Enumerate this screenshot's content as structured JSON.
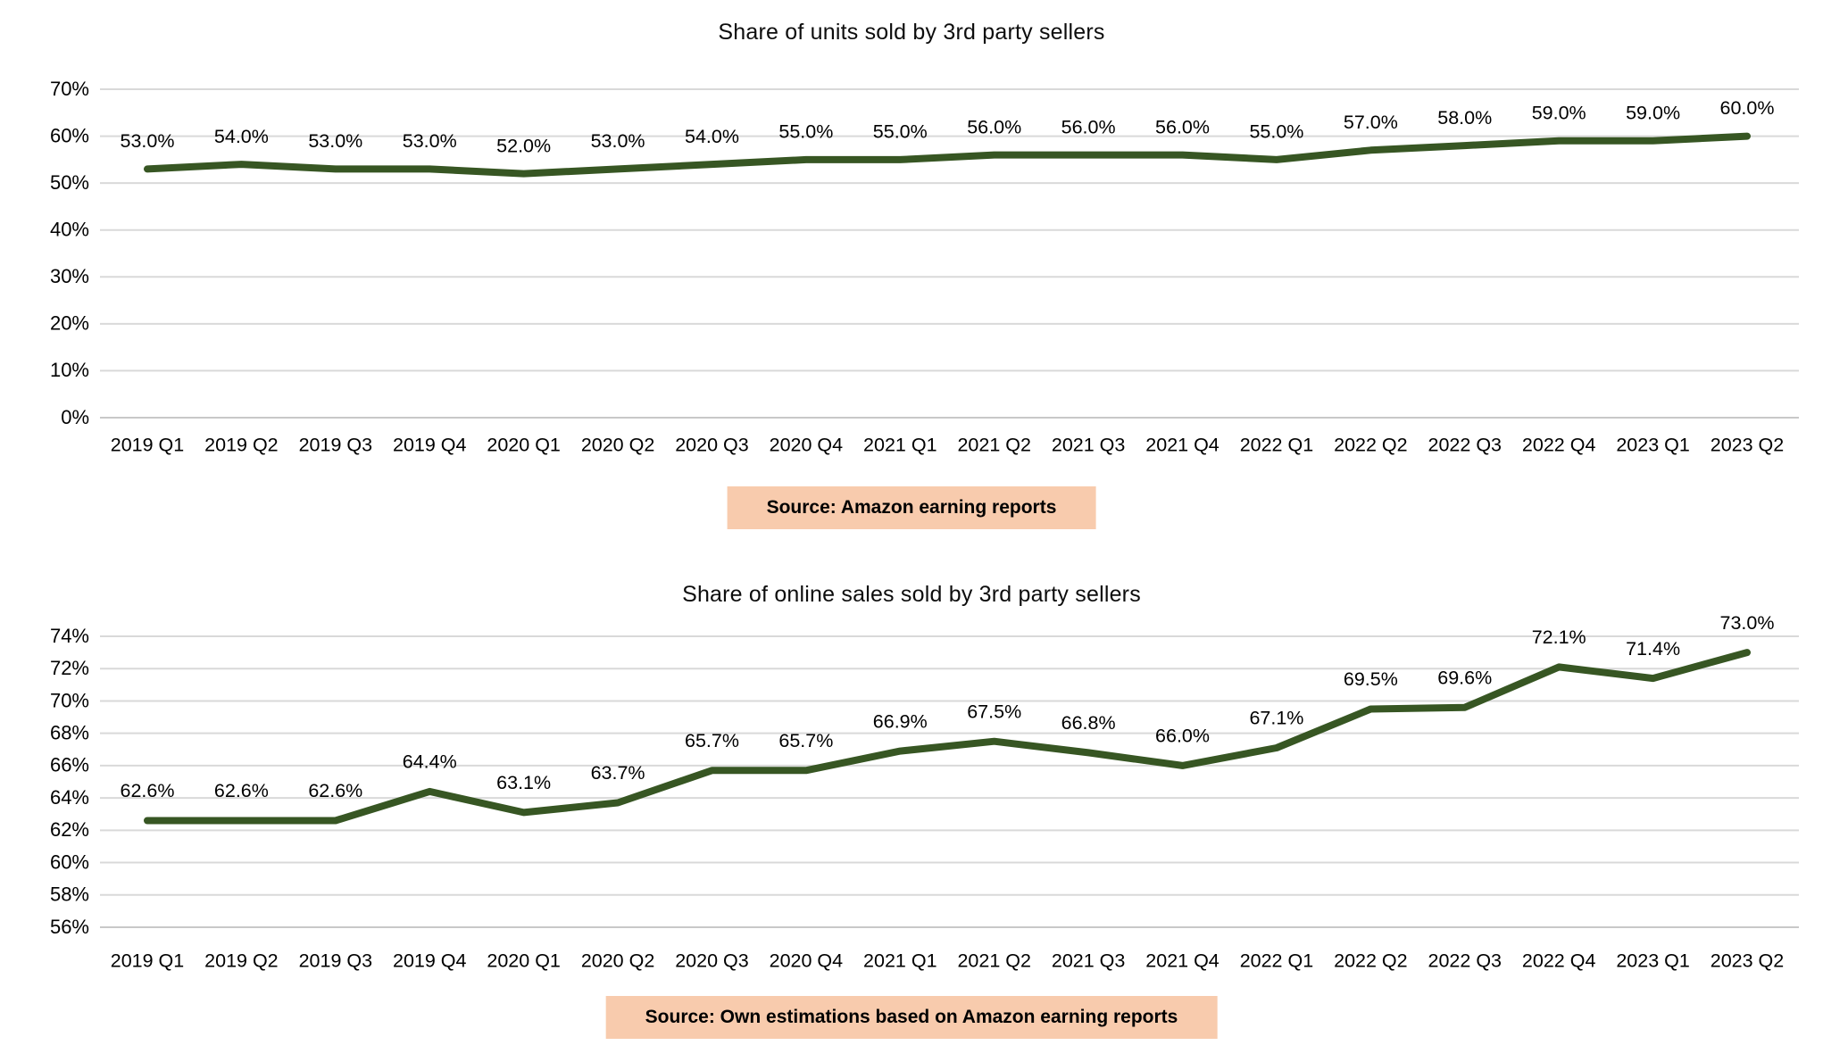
{
  "page": {
    "background_color": "#ffffff",
    "text_color": "#000000"
  },
  "chart_data": [
    {
      "type": "line",
      "title": "Share of units sold by 3rd party sellers",
      "source_label": "Source: Amazon earning reports",
      "categories": [
        "2019 Q1",
        "2019 Q2",
        "2019 Q3",
        "2019 Q4",
        "2020 Q1",
        "2020 Q2",
        "2020 Q3",
        "2020 Q4",
        "2021 Q1",
        "2021 Q2",
        "2021 Q3",
        "2021 Q4",
        "2022 Q1",
        "2022 Q2",
        "2022 Q3",
        "2022 Q4",
        "2023 Q1",
        "2023 Q2"
      ],
      "values": [
        53.0,
        54.0,
        53.0,
        53.0,
        52.0,
        53.0,
        54.0,
        55.0,
        55.0,
        56.0,
        56.0,
        56.0,
        55.0,
        57.0,
        58.0,
        59.0,
        59.0,
        60.0
      ],
      "data_labels": [
        "53.0%",
        "54.0%",
        "53.0%",
        "53.0%",
        "52.0%",
        "53.0%",
        "54.0%",
        "55.0%",
        "55.0%",
        "56.0%",
        "56.0%",
        "56.0%",
        "55.0%",
        "57.0%",
        "58.0%",
        "59.0%",
        "59.0%",
        "60.0%"
      ],
      "ylim": [
        0,
        70
      ],
      "ytick_step": 10,
      "ytick_labels": [
        "0%",
        "10%",
        "20%",
        "30%",
        "40%",
        "50%",
        "60%",
        "70%"
      ],
      "grid": "horizontal",
      "legend": "none",
      "line_color": "#375623",
      "grid_color": "#d9d9d9",
      "axis_color": "#c8c8c8",
      "source_bg_color": "#f8cbad"
    },
    {
      "type": "line",
      "title": "Share of online sales sold by 3rd party sellers",
      "source_label": "Source: Own estimations based on Amazon earning reports",
      "categories": [
        "2019 Q1",
        "2019 Q2",
        "2019 Q3",
        "2019 Q4",
        "2020 Q1",
        "2020 Q2",
        "2020 Q3",
        "2020 Q4",
        "2021 Q1",
        "2021 Q2",
        "2021 Q3",
        "2021 Q4",
        "2022 Q1",
        "2022 Q2",
        "2022 Q3",
        "2022 Q4",
        "2023 Q1",
        "2023 Q2"
      ],
      "values": [
        62.6,
        62.6,
        62.6,
        64.4,
        63.1,
        63.7,
        65.7,
        65.7,
        66.9,
        67.5,
        66.8,
        66.0,
        67.1,
        69.5,
        69.6,
        72.1,
        71.4,
        73.0
      ],
      "data_labels": [
        "62.6%",
        "62.6%",
        "62.6%",
        "64.4%",
        "63.1%",
        "63.7%",
        "65.7%",
        "65.7%",
        "66.9%",
        "67.5%",
        "66.8%",
        "66.0%",
        "67.1%",
        "69.5%",
        "69.6%",
        "72.1%",
        "71.4%",
        "73.0%"
      ],
      "ylim": [
        56,
        74
      ],
      "ytick_step": 2,
      "ytick_labels": [
        "56%",
        "58%",
        "60%",
        "62%",
        "64%",
        "66%",
        "68%",
        "70%",
        "72%",
        "74%"
      ],
      "grid": "horizontal",
      "legend": "none",
      "line_color": "#375623",
      "grid_color": "#d9d9d9",
      "axis_color": "#c8c8c8",
      "source_bg_color": "#f8cbad"
    }
  ]
}
